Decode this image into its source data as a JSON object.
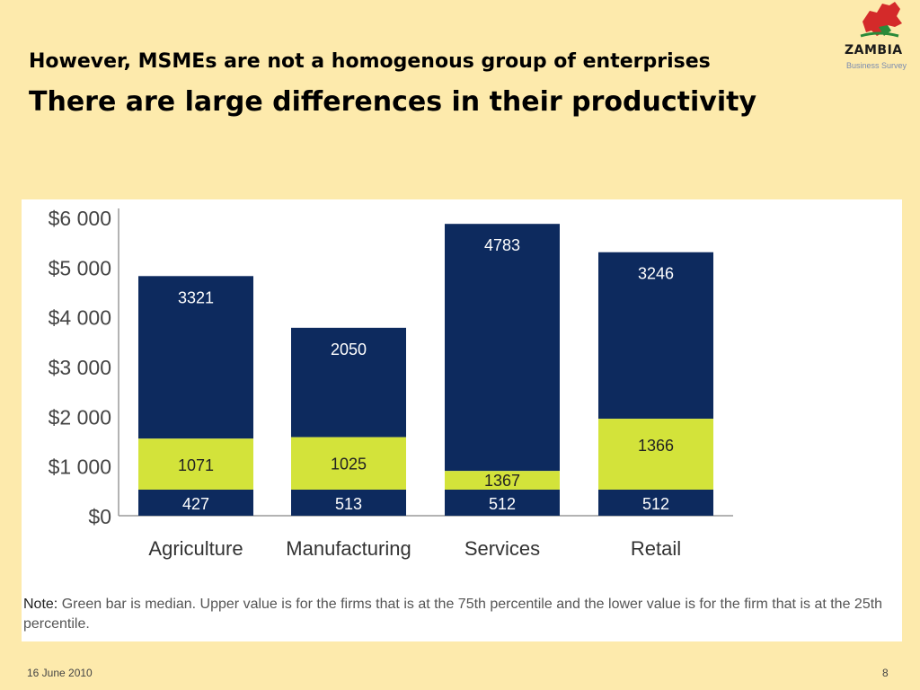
{
  "slide": {
    "subtitle": "However, MSMEs are not a homogenous group of enterprises",
    "title": "There are large differences in their productivity",
    "date": "16 June 2010",
    "page_number": "8"
  },
  "logo": {
    "name": "ZAMBIA",
    "tagline": "Business Survey"
  },
  "note": {
    "label": "Note:",
    "text": "Green bar is median.  Upper value is for the firms that is at the 75th percentile and the lower value is for the firm that is at the 25th percentile."
  },
  "colors": {
    "navy": "#0d2a5e",
    "green": "#d3e33a",
    "background": "#fdeaac",
    "axis": "#9a9a9a"
  },
  "chart_data": {
    "type": "bar",
    "categories": [
      "Agriculture",
      "Manufacturing",
      "Services",
      "Retail"
    ],
    "series": [
      {
        "values": [
          427,
          513,
          512,
          512
        ],
        "color": "#0d2a5e"
      },
      {
        "values": [
          1071,
          1025,
          1367,
          1366
        ],
        "color": "#d3e33a"
      },
      {
        "values": [
          3321,
          2050,
          4783,
          3246
        ],
        "color": "#0d2a5e"
      }
    ],
    "bar_tops": [
      4820,
      3780,
      5870,
      5300
    ],
    "median_tops": [
      1550,
      1580,
      900,
      1950
    ],
    "ylim": [
      0,
      6000
    ],
    "yticks": [
      "$0",
      "$1 000",
      "$2 000",
      "$3 000",
      "$4 000",
      "$5 000",
      "$6 000"
    ],
    "ytick_values": [
      0,
      1000,
      2000,
      3000,
      4000,
      5000,
      6000
    ],
    "grid": false,
    "legend": "none"
  }
}
